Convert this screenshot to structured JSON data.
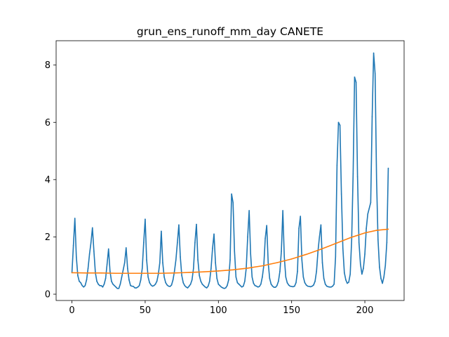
{
  "chart_data": {
    "type": "line",
    "title": "grun_ens_runoff_mm_day CANETE",
    "xlabel": "",
    "ylabel": "",
    "xlim": [
      -10.8,
      226.8
    ],
    "ylim": [
      -0.22,
      8.85
    ],
    "x_ticks": [
      0,
      50,
      100,
      150,
      200
    ],
    "y_ticks": [
      0,
      2,
      4,
      6,
      8
    ],
    "grid": false,
    "legend": "none",
    "series": [
      {
        "color": "#1f77b4",
        "points": [
          [
            0,
            0.75
          ],
          [
            1,
            1.7
          ],
          [
            2,
            2.65
          ],
          [
            3,
            1.3
          ],
          [
            4,
            0.65
          ],
          [
            5,
            0.45
          ],
          [
            6,
            0.4
          ],
          [
            7,
            0.3
          ],
          [
            8,
            0.25
          ],
          [
            9,
            0.3
          ],
          [
            10,
            0.5
          ],
          [
            11,
            0.9
          ],
          [
            12,
            1.4
          ],
          [
            13,
            1.8
          ],
          [
            14,
            2.32
          ],
          [
            15,
            1.5
          ],
          [
            16,
            0.75
          ],
          [
            17,
            0.45
          ],
          [
            18,
            0.35
          ],
          [
            19,
            0.3
          ],
          [
            20,
            0.3
          ],
          [
            21,
            0.25
          ],
          [
            22,
            0.35
          ],
          [
            23,
            0.55
          ],
          [
            24,
            1.05
          ],
          [
            25,
            1.58
          ],
          [
            26,
            0.8
          ],
          [
            27,
            0.45
          ],
          [
            28,
            0.35
          ],
          [
            29,
            0.3
          ],
          [
            30,
            0.25
          ],
          [
            31,
            0.2
          ],
          [
            32,
            0.2
          ],
          [
            33,
            0.35
          ],
          [
            34,
            0.6
          ],
          [
            35,
            0.85
          ],
          [
            36,
            1.1
          ],
          [
            37,
            1.62
          ],
          [
            38,
            0.9
          ],
          [
            39,
            0.5
          ],
          [
            40,
            0.3
          ],
          [
            41,
            0.28
          ],
          [
            42,
            0.27
          ],
          [
            43,
            0.22
          ],
          [
            44,
            0.22
          ],
          [
            45,
            0.25
          ],
          [
            46,
            0.3
          ],
          [
            47,
            0.5
          ],
          [
            48,
            0.9
          ],
          [
            49,
            1.8
          ],
          [
            50,
            2.62
          ],
          [
            51,
            1.2
          ],
          [
            52,
            0.6
          ],
          [
            53,
            0.4
          ],
          [
            54,
            0.32
          ],
          [
            55,
            0.28
          ],
          [
            56,
            0.3
          ],
          [
            57,
            0.35
          ],
          [
            58,
            0.45
          ],
          [
            59,
            0.7
          ],
          [
            60,
            1.1
          ],
          [
            61,
            2.2
          ],
          [
            62,
            1.1
          ],
          [
            63,
            0.6
          ],
          [
            64,
            0.4
          ],
          [
            65,
            0.32
          ],
          [
            66,
            0.28
          ],
          [
            67,
            0.27
          ],
          [
            68,
            0.32
          ],
          [
            69,
            0.5
          ],
          [
            70,
            0.8
          ],
          [
            71,
            1.2
          ],
          [
            72,
            1.8
          ],
          [
            73,
            2.42
          ],
          [
            74,
            1.3
          ],
          [
            75,
            0.65
          ],
          [
            76,
            0.4
          ],
          [
            77,
            0.3
          ],
          [
            78,
            0.25
          ],
          [
            79,
            0.22
          ],
          [
            80,
            0.28
          ],
          [
            81,
            0.35
          ],
          [
            82,
            0.5
          ],
          [
            83,
            0.9
          ],
          [
            84,
            1.8
          ],
          [
            85,
            2.44
          ],
          [
            86,
            1.2
          ],
          [
            87,
            0.65
          ],
          [
            88,
            0.45
          ],
          [
            89,
            0.35
          ],
          [
            90,
            0.3
          ],
          [
            91,
            0.25
          ],
          [
            92,
            0.22
          ],
          [
            93,
            0.28
          ],
          [
            94,
            0.45
          ],
          [
            95,
            0.9
          ],
          [
            96,
            1.6
          ],
          [
            97,
            2.1
          ],
          [
            98,
            1.1
          ],
          [
            99,
            0.55
          ],
          [
            100,
            0.35
          ],
          [
            101,
            0.3
          ],
          [
            102,
            0.25
          ],
          [
            103,
            0.22
          ],
          [
            104,
            0.2
          ],
          [
            105,
            0.22
          ],
          [
            106,
            0.3
          ],
          [
            107,
            0.5
          ],
          [
            108,
            1.2
          ],
          [
            109,
            3.5
          ],
          [
            110,
            3.2
          ],
          [
            111,
            1.5
          ],
          [
            112,
            0.6
          ],
          [
            113,
            0.4
          ],
          [
            114,
            0.35
          ],
          [
            115,
            0.3
          ],
          [
            116,
            0.25
          ],
          [
            117,
            0.28
          ],
          [
            118,
            0.45
          ],
          [
            119,
            0.9
          ],
          [
            120,
            2.0
          ],
          [
            121,
            2.92
          ],
          [
            122,
            1.4
          ],
          [
            123,
            0.6
          ],
          [
            124,
            0.38
          ],
          [
            125,
            0.3
          ],
          [
            126,
            0.28
          ],
          [
            127,
            0.25
          ],
          [
            128,
            0.27
          ],
          [
            129,
            0.35
          ],
          [
            130,
            0.6
          ],
          [
            131,
            1.0
          ],
          [
            132,
            1.95
          ],
          [
            133,
            2.4
          ],
          [
            134,
            1.1
          ],
          [
            135,
            0.55
          ],
          [
            136,
            0.35
          ],
          [
            137,
            0.28
          ],
          [
            138,
            0.24
          ],
          [
            139,
            0.24
          ],
          [
            140,
            0.3
          ],
          [
            141,
            0.45
          ],
          [
            142,
            0.8
          ],
          [
            143,
            1.5
          ],
          [
            144,
            2.92
          ],
          [
            145,
            1.3
          ],
          [
            146,
            0.6
          ],
          [
            147,
            0.4
          ],
          [
            148,
            0.32
          ],
          [
            149,
            0.28
          ],
          [
            150,
            0.27
          ],
          [
            151,
            0.26
          ],
          [
            152,
            0.28
          ],
          [
            153,
            0.4
          ],
          [
            154,
            0.8
          ],
          [
            155,
            2.3
          ],
          [
            156,
            2.72
          ],
          [
            157,
            1.2
          ],
          [
            158,
            0.6
          ],
          [
            159,
            0.4
          ],
          [
            160,
            0.32
          ],
          [
            161,
            0.28
          ],
          [
            162,
            0.27
          ],
          [
            163,
            0.26
          ],
          [
            164,
            0.28
          ],
          [
            165,
            0.32
          ],
          [
            166,
            0.45
          ],
          [
            167,
            0.8
          ],
          [
            168,
            1.5
          ],
          [
            169,
            2.0
          ],
          [
            170,
            2.42
          ],
          [
            171,
            1.1
          ],
          [
            172,
            0.55
          ],
          [
            173,
            0.35
          ],
          [
            174,
            0.28
          ],
          [
            175,
            0.26
          ],
          [
            176,
            0.25
          ],
          [
            177,
            0.25
          ],
          [
            178,
            0.28
          ],
          [
            179,
            0.35
          ],
          [
            180,
            1.3
          ],
          [
            181,
            4.5
          ],
          [
            182,
            6.0
          ],
          [
            183,
            5.9
          ],
          [
            184,
            3.5
          ],
          [
            185,
            1.6
          ],
          [
            186,
            0.75
          ],
          [
            187,
            0.5
          ],
          [
            188,
            0.38
          ],
          [
            189,
            0.42
          ],
          [
            190,
            0.7
          ],
          [
            191,
            1.9
          ],
          [
            192,
            4.2
          ],
          [
            193,
            7.58
          ],
          [
            194,
            7.4
          ],
          [
            195,
            4.1
          ],
          [
            196,
            1.8
          ],
          [
            197,
            1.05
          ],
          [
            198,
            0.7
          ],
          [
            199,
            0.9
          ],
          [
            200,
            1.4
          ],
          [
            201,
            2.3
          ],
          [
            202,
            2.8
          ],
          [
            203,
            3.0
          ],
          [
            204,
            3.2
          ],
          [
            205,
            6.2
          ],
          [
            206,
            8.42
          ],
          [
            207,
            7.7
          ],
          [
            208,
            4.0
          ],
          [
            209,
            1.9
          ],
          [
            210,
            0.95
          ],
          [
            211,
            0.55
          ],
          [
            212,
            0.38
          ],
          [
            213,
            0.6
          ],
          [
            214,
            1.0
          ],
          [
            215,
            1.8
          ],
          [
            216,
            4.4
          ]
        ]
      },
      {
        "color": "#ff7f0e",
        "points": [
          [
            0,
            0.75
          ],
          [
            10,
            0.74
          ],
          [
            20,
            0.74
          ],
          [
            30,
            0.73
          ],
          [
            40,
            0.73
          ],
          [
            50,
            0.73
          ],
          [
            60,
            0.73
          ],
          [
            70,
            0.74
          ],
          [
            80,
            0.76
          ],
          [
            90,
            0.78
          ],
          [
            100,
            0.81
          ],
          [
            110,
            0.85
          ],
          [
            120,
            0.91
          ],
          [
            130,
            0.99
          ],
          [
            140,
            1.1
          ],
          [
            150,
            1.23
          ],
          [
            160,
            1.39
          ],
          [
            170,
            1.57
          ],
          [
            180,
            1.77
          ],
          [
            190,
            1.97
          ],
          [
            200,
            2.14
          ],
          [
            208,
            2.23
          ],
          [
            216,
            2.27
          ]
        ]
      }
    ]
  }
}
